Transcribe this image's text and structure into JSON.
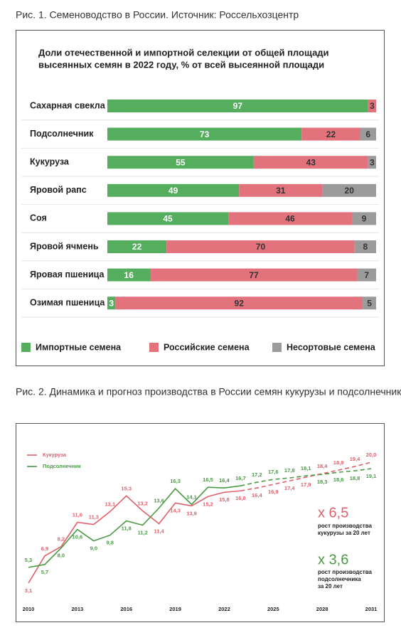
{
  "chart_data": [
    {
      "type": "bar",
      "stacked": true,
      "caption": "Рис. 1. Семеноводство в России. Источник: Россельхозцентр",
      "title": [
        "Доли отечественной и импортной селекции от общей площади",
        "высеянных семян в 2022 году, % от всей высеянной площади"
      ],
      "categories": [
        "Сахарная свекла",
        "Подсолнечник",
        "Кукуруза",
        "Яровой рапс",
        "Соя",
        "Яровой ячмень",
        "Яровая пшеница",
        "Озимая пшеница"
      ],
      "series": [
        {
          "name": "Импортные семена",
          "color": "#55ad5e",
          "values": [
            97,
            73,
            55,
            49,
            45,
            22,
            16,
            3
          ]
        },
        {
          "name": "Российские семена",
          "color": "#e2737c",
          "values": [
            3,
            22,
            43,
            31,
            46,
            70,
            77,
            92
          ]
        },
        {
          "name": "Несортовые семена",
          "color": "#9b9b9b",
          "values": [
            null,
            6,
            3,
            20,
            9,
            8,
            7,
            5
          ]
        }
      ]
    },
    {
      "type": "line",
      "caption": "Рис. 2. Динамика и прогноз производства в России семян кукурузы и подсолнечника",
      "x": [
        2010,
        2011,
        2012,
        2013,
        2014,
        2015,
        2016,
        2017,
        2018,
        2019,
        2020,
        2021,
        2022,
        2023,
        2024,
        2025,
        2026,
        2027,
        2028,
        2029,
        2030,
        2031
      ],
      "xlim": [
        2010,
        2031
      ],
      "xticks": [
        2010,
        2013,
        2016,
        2019,
        2022,
        2025,
        2028,
        2031
      ],
      "dashed_from": 2023,
      "series": [
        {
          "name": "Кукуруза",
          "color": "#e0606b",
          "values": [
            3.1,
            6.9,
            8.2,
            11.6,
            11.3,
            13.1,
            15.3,
            13.2,
            11.4,
            14.3,
            13.9,
            15.2,
            15.8,
            16.0,
            16.4,
            16.9,
            17.4,
            17.9,
            18.4,
            18.9,
            19.4,
            20.0
          ],
          "value_labels": [
            "3,1",
            "6,9",
            "8,2",
            "11,6",
            "11,3",
            "13,1",
            "15,3",
            "13,2",
            "11,4",
            "14,3",
            "13,9",
            "15,2",
            "15,8",
            "16,0",
            "16,4",
            "16,9",
            "17,4",
            "17,9",
            "18,4",
            "18,9",
            "19,4",
            "20,0"
          ]
        },
        {
          "name": "Подсолнечник",
          "color": "#4a9a45",
          "values": [
            5.3,
            5.7,
            8.0,
            10.6,
            9.0,
            9.8,
            11.8,
            11.2,
            13.6,
            16.3,
            14.1,
            16.5,
            16.4,
            16.7,
            17.2,
            17.6,
            17.8,
            18.1,
            18.3,
            18.6,
            18.8,
            19.1
          ],
          "value_labels": [
            "5,3",
            "5,7",
            "8,0",
            "10,6",
            "9,0",
            "9,8",
            "11,8",
            "11,2",
            "13,6",
            "16,3",
            "14,1",
            "16,5",
            "16,4",
            "16,7",
            "17,2",
            "17,6",
            "17,8",
            "18,1",
            "18,3",
            "18,6",
            "18,8",
            "19,1"
          ]
        }
      ],
      "annotations": [
        {
          "text": "x 6,5",
          "note": [
            "рост производства",
            "кукурузы за 20 лет"
          ]
        },
        {
          "text": "x 3,6",
          "note": [
            "рост производства",
            "подсолнечника",
            "за 20 лет"
          ]
        }
      ]
    }
  ]
}
